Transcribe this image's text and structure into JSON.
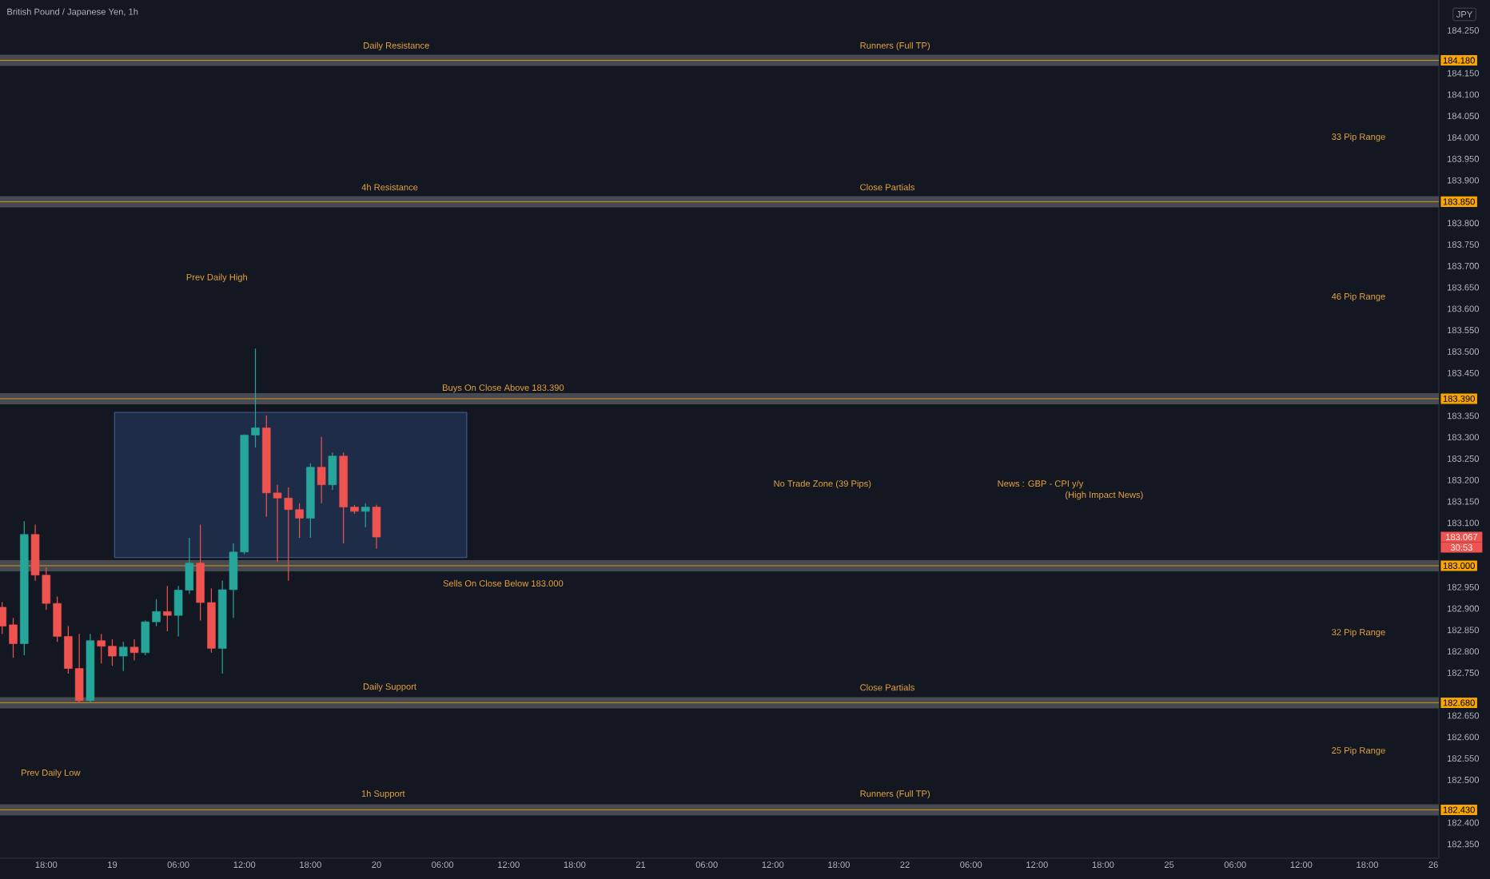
{
  "chart_data": {
    "type": "candlestick",
    "title": "British Pound / Japanese Yen, 1h",
    "ylabel": "JPY",
    "categories": [
      null,
      null,
      null,
      null,
      "18:00",
      null,
      null,
      null,
      null,
      null,
      "19",
      null,
      null,
      null,
      null,
      null,
      "06:00",
      null,
      null,
      null,
      null,
      null,
      "12:00",
      null,
      null,
      null,
      null,
      null,
      "18:00",
      null,
      null,
      null,
      null,
      null,
      "20",
      null,
      null,
      null,
      null,
      null,
      "06:00",
      null,
      null,
      null,
      null,
      null,
      "12:00",
      null,
      null,
      null,
      null,
      null,
      "18:00",
      null,
      null,
      null,
      null,
      null,
      "21",
      null,
      null,
      null,
      null,
      null,
      "06:00",
      null,
      null,
      null,
      null,
      null,
      "12:00",
      null,
      null,
      null,
      null,
      null,
      "18:00",
      null,
      null,
      null,
      null,
      null,
      "22",
      null,
      null,
      null,
      null,
      null,
      "06:00",
      null,
      null,
      null,
      null,
      null,
      "12:00",
      null,
      null,
      null,
      null,
      null,
      "18:00",
      null,
      null,
      null,
      null,
      null,
      "25",
      null,
      null,
      null,
      null,
      null,
      "06:00",
      null,
      null,
      null,
      null,
      null,
      "12:00",
      null,
      null,
      null,
      null,
      null,
      "18:00",
      null,
      null,
      null,
      null,
      null,
      "26"
    ],
    "ohlc": [
      [
        182.903,
        182.915,
        182.841,
        182.859
      ],
      [
        182.862,
        182.878,
        182.785,
        182.818
      ],
      [
        182.818,
        183.104,
        182.791,
        183.073
      ],
      [
        183.073,
        183.096,
        182.965,
        182.978
      ],
      [
        182.978,
        182.996,
        182.897,
        182.912
      ],
      [
        182.912,
        182.928,
        182.822,
        182.835
      ],
      [
        182.835,
        182.859,
        182.748,
        182.76
      ],
      [
        182.76,
        182.841,
        182.679,
        182.685
      ],
      [
        182.685,
        182.841,
        182.679,
        182.825
      ],
      [
        182.825,
        182.841,
        182.772,
        182.812
      ],
      [
        182.812,
        182.828,
        182.766,
        182.789
      ],
      [
        182.789,
        182.822,
        182.754,
        182.81
      ],
      [
        182.81,
        182.828,
        182.779,
        182.797
      ],
      [
        182.797,
        182.872,
        182.791,
        182.869
      ],
      [
        182.869,
        182.922,
        182.859,
        182.893
      ],
      [
        182.893,
        182.953,
        182.847,
        182.884
      ],
      [
        182.884,
        182.953,
        182.835,
        182.943
      ],
      [
        182.943,
        183.065,
        182.934,
        183.006
      ],
      [
        183.006,
        183.096,
        182.872,
        182.914
      ],
      [
        182.914,
        182.947,
        182.797,
        182.807
      ],
      [
        182.807,
        182.965,
        182.748,
        182.944
      ],
      [
        182.944,
        183.052,
        182.878,
        183.032
      ],
      [
        183.032,
        183.307,
        183.027,
        183.305
      ],
      [
        183.305,
        183.507,
        183.276,
        183.322
      ],
      [
        183.322,
        183.351,
        183.114,
        183.17
      ],
      [
        183.17,
        183.189,
        183.009,
        183.158
      ],
      [
        183.158,
        183.183,
        182.965,
        183.131
      ],
      [
        183.131,
        183.146,
        183.065,
        183.111
      ],
      [
        183.111,
        183.239,
        183.065,
        183.23
      ],
      [
        183.23,
        183.301,
        183.146,
        183.189
      ],
      [
        183.189,
        183.264,
        183.177,
        183.256
      ],
      [
        183.256,
        183.264,
        183.052,
        183.137
      ],
      [
        183.137,
        183.142,
        183.121,
        183.127
      ],
      [
        183.127,
        183.146,
        183.09,
        183.137
      ],
      [
        183.137,
        183.142,
        183.04,
        183.067
      ],
      null,
      null,
      null,
      null,
      null,
      null,
      null,
      null,
      null,
      null,
      null,
      null,
      null,
      null,
      null,
      null,
      null,
      null,
      null,
      null,
      null,
      null,
      null,
      null,
      null,
      null,
      null,
      null,
      null,
      null,
      null,
      null,
      null,
      null,
      null,
      null,
      null,
      null,
      null,
      null,
      null,
      null,
      null,
      null,
      null,
      null,
      null,
      null,
      null,
      null,
      null,
      null,
      null,
      null,
      null,
      null,
      null,
      null,
      null,
      null,
      null,
      null,
      null,
      null,
      null,
      null,
      null,
      null,
      null,
      null,
      null,
      null,
      null,
      null,
      null,
      null,
      null,
      null,
      null,
      null,
      null,
      null,
      null,
      null,
      null,
      null,
      null,
      null,
      null,
      null,
      null,
      null,
      null,
      null,
      null,
      null
    ],
    "colors": [
      "#ef5350",
      "#ef5350",
      "#26a69a",
      "#ef5350",
      "#ef5350",
      "#ef5350",
      "#ef5350",
      "#ef5350",
      "#26a69a",
      "#ef5350",
      "#ef5350",
      "#26a69a",
      "#ef5350",
      "#26a69a",
      "#26a69a",
      "#ef5350",
      "#26a69a",
      "#26a69a",
      "#ef5350",
      "#ef5350",
      "#26a69a",
      "#26a69a",
      "#26a69a",
      "#26a69a",
      "#ef5350",
      "#ef5350",
      "#ef5350",
      "#ef5350",
      "#26a69a",
      "#ef5350",
      "#26a69a",
      "#ef5350",
      "#ef5350",
      "#26a69a",
      "#ef5350",
      null,
      null,
      null,
      null,
      null,
      null,
      null,
      null,
      null,
      null,
      null,
      null,
      null,
      null,
      null,
      null,
      null,
      null,
      null,
      null,
      null,
      null,
      null,
      null,
      null,
      null,
      null,
      null,
      null,
      null,
      null,
      null,
      null,
      null,
      null,
      null,
      null,
      null,
      null,
      null,
      null,
      null,
      null,
      null,
      null,
      null,
      null,
      null,
      null,
      null,
      null,
      null,
      null,
      null,
      null,
      null,
      null,
      null,
      null,
      null,
      null,
      null,
      null,
      null,
      null,
      null,
      null,
      null,
      null,
      null,
      null,
      null,
      null,
      null,
      null,
      null,
      null,
      null,
      null,
      null,
      null,
      null,
      null,
      null,
      null,
      null,
      null,
      null,
      null,
      null,
      null,
      null,
      null,
      null,
      null,
      null
    ],
    "ylim": [
      182.317,
      184.321
    ],
    "yticks": [
      {
        "value": 182.35,
        "label": "182.350"
      },
      {
        "value": 182.4,
        "label": "182.400"
      },
      {
        "value": 182.5,
        "label": "182.500"
      },
      {
        "value": 182.55,
        "label": "182.550"
      },
      {
        "value": 182.6,
        "label": "182.600"
      },
      {
        "value": 182.65,
        "label": "182.650"
      },
      {
        "value": 182.75,
        "label": "182.750"
      },
      {
        "value": 182.8,
        "label": "182.800"
      },
      {
        "value": 182.85,
        "label": "182.850"
      },
      {
        "value": 182.9,
        "label": "182.900"
      },
      {
        "value": 182.95,
        "label": "182.950"
      },
      {
        "value": 183.1,
        "label": "183.100"
      },
      {
        "value": 183.15,
        "label": "183.150"
      },
      {
        "value": 183.2,
        "label": "183.200"
      },
      {
        "value": 183.25,
        "label": "183.250"
      },
      {
        "value": 183.3,
        "label": "183.300"
      },
      {
        "value": 183.35,
        "label": "183.350"
      },
      {
        "value": 183.45,
        "label": "183.450"
      },
      {
        "value": 183.5,
        "label": "183.500"
      },
      {
        "value": 183.55,
        "label": "183.550"
      },
      {
        "value": 183.6,
        "label": "183.600"
      },
      {
        "value": 183.65,
        "label": "183.650"
      },
      {
        "value": 183.7,
        "label": "183.700"
      },
      {
        "value": 183.75,
        "label": "183.750"
      },
      {
        "value": 183.8,
        "label": "183.800"
      },
      {
        "value": 183.9,
        "label": "183.900"
      },
      {
        "value": 183.95,
        "label": "183.950"
      },
      {
        "value": 184.0,
        "label": "184.000"
      },
      {
        "value": 184.05,
        "label": "184.050"
      },
      {
        "value": 184.1,
        "label": "184.100"
      },
      {
        "value": 184.15,
        "label": "184.150"
      },
      {
        "value": 184.25,
        "label": "184.250"
      }
    ],
    "ref_lines": [
      {
        "axis": "y",
        "value": 184.18,
        "label": "184.180",
        "color": "#f7a600"
      },
      {
        "axis": "y",
        "value": 183.85,
        "label": "183.850",
        "color": "#f7a600"
      },
      {
        "axis": "y",
        "value": 183.39,
        "label": "183.390",
        "color": "#f7a600"
      },
      {
        "axis": "y",
        "value": 183.0,
        "label": "183.000",
        "color": "#f7a600"
      },
      {
        "axis": "y",
        "value": 182.68,
        "label": "182.680",
        "color": "#f7a600"
      },
      {
        "axis": "y",
        "value": 182.43,
        "label": "182.430",
        "color": "#f7a600"
      }
    ],
    "bands": [
      {
        "axis": "y",
        "from": 183.019,
        "to": 183.358,
        "color": "#1e2c48"
      }
    ],
    "annotations": [
      "Daily Resistance",
      "Runners (Full TP)",
      "4h Resistance",
      "Close Partials",
      "Buys On Close Above 183.390",
      "Sells On Close Below 183.000",
      "Daily Support",
      "Close Partials",
      "1h Support",
      "Runners (Full TP)",
      "33 Pip Range",
      "46 Pip Range",
      "32 Pip Range",
      "25 Pip Range",
      "Prev Daily High",
      "Prev Daily Low",
      "No Trade Zone (39 Pips)",
      "News : GBP - CPI y/y",
      "(High Impact News)",
      "183.067",
      "30:53"
    ]
  }
}
